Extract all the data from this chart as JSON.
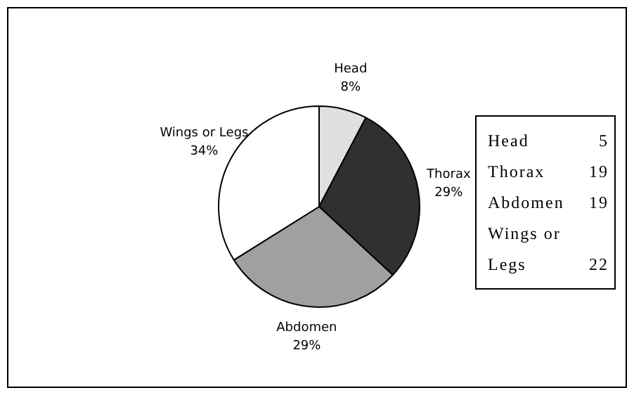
{
  "chart_data": {
    "type": "pie",
    "categories": [
      "Head",
      "Thorax",
      "Abdomen",
      "Wings or Legs"
    ],
    "values": [
      7.7,
      29.2,
      29.2,
      33.9
    ],
    "colors": [
      "#e0e0e0",
      "#303030",
      "#a0a0a0",
      "#ffffff"
    ],
    "value_labels": [
      "8%",
      "29%",
      "29%",
      "34%"
    ],
    "annotations": [
      "5",
      "19",
      "19",
      "22"
    ]
  }
}
